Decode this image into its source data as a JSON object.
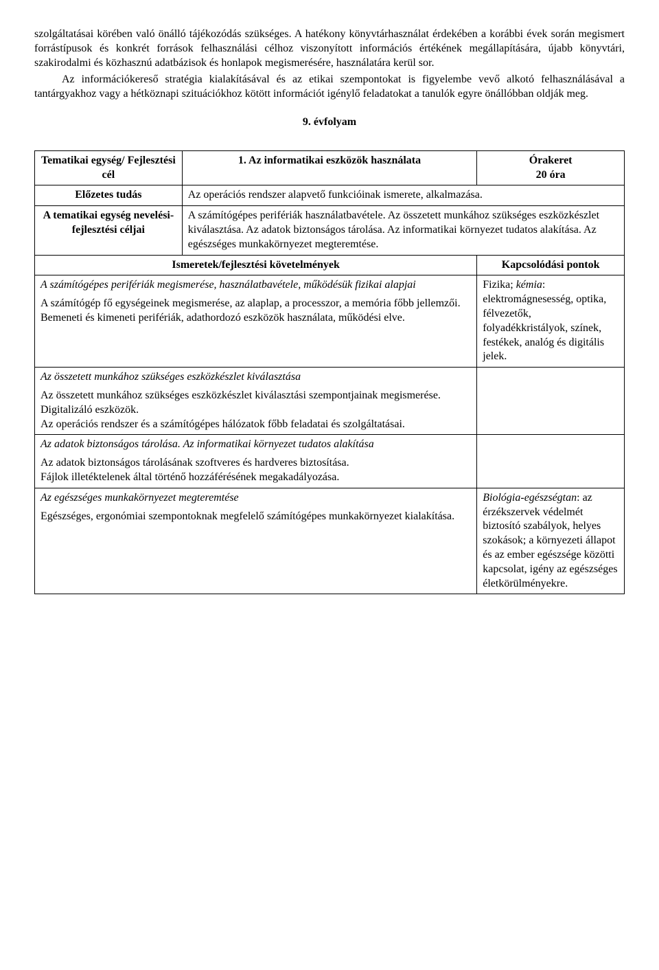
{
  "intro": {
    "p1": "szolgáltatásai körében való önálló tájékozódás szükséges. A hatékony könyvtárhasználat érdekében a korábbi évek során megismert forrástípusok és konkrét források felhasználási célhoz viszonyított információs értékének megállapítására, újabb könyvtári, szakirodalmi és közhasznú adatbázisok és honlapok megismerésére, használatára kerül sor.",
    "p2": "Az információkereső stratégia kialakításával és az etikai szempontokat is figyelembe vevő alkotó felhasználásával a tantárgyakhoz vagy a hétköznapi szituációkhoz kötött információt igénylő feladatokat a tanulók egyre önállóbban oldják meg."
  },
  "heading": "9. évfolyam",
  "table": {
    "row1": {
      "label": "Tematikai egység/ Fejlesztési cél",
      "title": "1. Az informatikai eszközök használata",
      "hours_label": "Órakeret",
      "hours_value": "20 óra"
    },
    "row2": {
      "label": "Előzetes tudás",
      "text": "Az operációs rendszer alapvető funkcióinak ismerete, alkalmazása."
    },
    "row3": {
      "label": "A tematikai egység nevelési-fejlesztési céljai",
      "text": "A számítógépes perifériák használatbavétele. Az összetett munkához szükséges eszközkészlet kiválasztása. Az adatok biztonságos tárolása. Az informatikai környezet tudatos alakítása. Az egészséges munkakörnyezet megteremtése."
    },
    "header2": {
      "left": "Ismeretek/fejlesztési követelmények",
      "right": "Kapcsolódási pontok"
    },
    "block1": {
      "title": "A számítógépes perifériák megismerése, használatbavétele, működésük fizikai alapjai",
      "body": "A számítógép fő egységeinek megismerése, az alaplap, a processzor, a memória főbb jellemzői.\nBemeneti és kimeneti perifériák, adathordozó eszközök használata, működési elve.",
      "links_prefix": "Fizika; ",
      "links_italic": "kémia",
      "links_rest": ": elektromágnesesség, optika, félvezetők, folyadékkristályok, színek, festékek, analóg és digitális jelek."
    },
    "block2": {
      "title": "Az összetett munkához szükséges eszközkészlet kiválasztása",
      "body": "Az összetett munkához szükséges eszközkészlet kiválasztási szempontjainak megismerése.\nDigitalizáló eszközök.\nAz operációs rendszer és a számítógépes hálózatok főbb feladatai és szolgáltatásai."
    },
    "block3": {
      "title": "Az adatok biztonságos tárolása. Az informatikai környezet tudatos alakítása",
      "body": "Az adatok biztonságos tárolásának szoftveres és hardveres biztosítása.\nFájlok illetéktelenek által történő hozzáférésének megakadályozása."
    },
    "block4": {
      "title": "Az egészséges munkakörnyezet megteremtése",
      "body": "Egészséges, ergonómiai szempontoknak megfelelő számítógépes munkakörnyezet kialakítása.",
      "links_italic": "Biológia-egészségtan",
      "links_rest": ": az érzékszervek védelmét biztosító szabályok, helyes szokások; a környezeti állapot és az ember egészsége közötti kapcsolat, igény az egészséges életkörülményekre."
    }
  }
}
